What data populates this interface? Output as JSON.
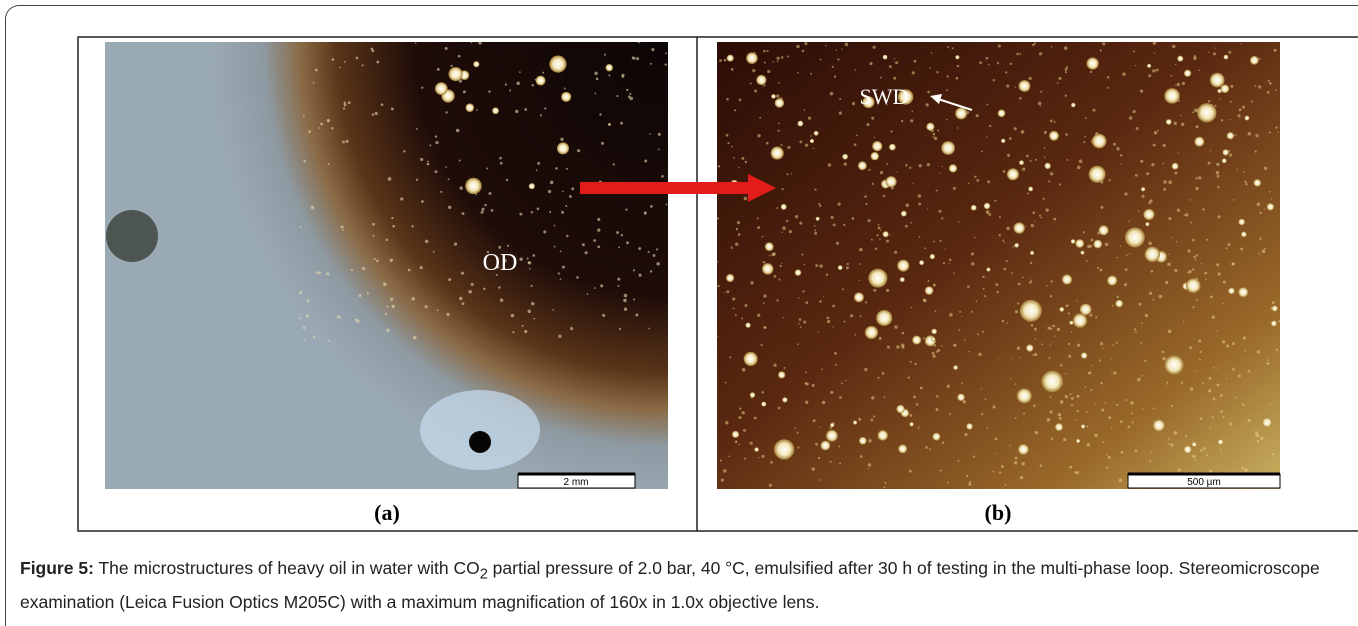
{
  "figure": {
    "panels": [
      {
        "label": "(a)",
        "annotation": "OD",
        "scale_bar": "2 mm"
      },
      {
        "label": "(b)",
        "annotation": "SWD",
        "scale_bar": "500 µm"
      }
    ],
    "caption": {
      "label": "Figure 5:",
      "text_before": " The microstructures of heavy oil in water with CO",
      "subscript": "2",
      "text_after": " partial pressure of 2.0 bar, 40 °C, emulsified after 30 h of testing in the multi-phase loop. Stereomicroscope examination (Leica Fusion Optics M205C) with a maximum magnification of 160x in 1.0x objective lens."
    }
  }
}
